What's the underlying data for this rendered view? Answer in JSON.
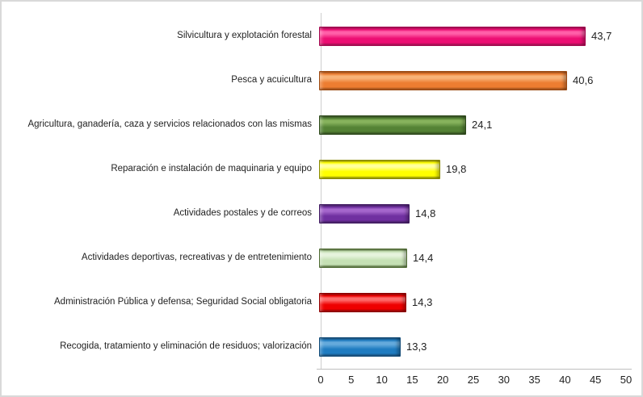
{
  "chart_data": {
    "type": "bar",
    "orientation": "horizontal",
    "title": "",
    "xlabel": "",
    "ylabel": "",
    "xlim": [
      0,
      50
    ],
    "x_ticks": [
      "0",
      "5",
      "10",
      "15",
      "20",
      "25",
      "30",
      "35",
      "40",
      "45",
      "50"
    ],
    "x_tick_values": [
      0,
      5,
      10,
      15,
      20,
      25,
      30,
      35,
      40,
      45,
      50
    ],
    "grid": false,
    "legend": false,
    "bar_style": "3d-bevel",
    "categories": [
      "Silvicultura y explotación forestal",
      "Pesca y acuicultura",
      "Agricultura, ganadería, caza y servicios relacionados con las mismas",
      "Reparación e instalación de maquinaria y equipo",
      "Actividades postales y de correos",
      "Actividades deportivas, recreativas y de entretenimiento",
      "Administración Pública y defensa; Seguridad Social obligatoria",
      "Recogida, tratamiento y eliminación de residuos; valorización"
    ],
    "values": [
      43.7,
      40.6,
      24.1,
      19.8,
      14.8,
      14.4,
      14.3,
      13.3
    ],
    "value_labels": [
      "43,7",
      "40,6",
      "24,1",
      "19,8",
      "14,8",
      "14,4",
      "14,3",
      "13,3"
    ],
    "bar_colors": [
      {
        "fill": "#EC0E73",
        "highlight": "#FF5FA8",
        "border": "#A3094F"
      },
      {
        "fill": "#ED7D31",
        "highlight": "#F8B277",
        "border": "#9C4A12"
      },
      {
        "fill": "#548235",
        "highlight": "#86B25C",
        "border": "#2E4A1B"
      },
      {
        "fill": "#FFFF00",
        "highlight": "#FFFF9E",
        "border": "#8A8A00"
      },
      {
        "fill": "#7030A0",
        "highlight": "#A566CC",
        "border": "#401A61"
      },
      {
        "fill": "#C5E0B4",
        "highlight": "#E6F3DC",
        "border": "#4F6B33"
      },
      {
        "fill": "#EE0000",
        "highlight": "#FF6A6A",
        "border": "#8F0000"
      },
      {
        "fill": "#1F7CC1",
        "highlight": "#64AADC",
        "border": "#124B77"
      }
    ]
  }
}
